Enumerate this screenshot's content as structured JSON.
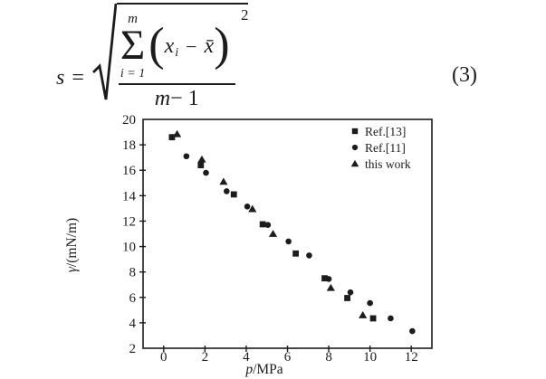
{
  "formula": {
    "lhs": "s",
    "equals": "=",
    "sum_upper": "m",
    "sum_glyph": "Σ",
    "sum_lower": "i = 1",
    "open_paren": "(",
    "x_term": "x",
    "x_sub": "i",
    "minus": "−",
    "xbar_term": "x̄",
    "close_paren": ")",
    "exponent": "2",
    "den_var": "m",
    "den_rest": " − 1",
    "eq_number": "(3)"
  },
  "chart_data": {
    "type": "scatter",
    "title": "",
    "xlabel": "p/MPa",
    "xlabel_var": "p",
    "xlabel_rest": "/MPa",
    "ylabel": "γ/(mN/m)",
    "ylabel_var": "γ",
    "ylabel_rest": "/(mN/m)",
    "xlim": [
      -1,
      13
    ],
    "ylim": [
      2,
      20
    ],
    "xticks": [
      0,
      2,
      4,
      6,
      8,
      10,
      12
    ],
    "yticks": [
      2,
      4,
      6,
      8,
      10,
      12,
      14,
      16,
      18,
      20
    ],
    "grid": false,
    "legend_position": "top-right",
    "marker_color": "#1c1c1c",
    "series": [
      {
        "name": "Ref.[13]",
        "marker": "square",
        "points": [
          [
            0.4,
            18.6
          ],
          [
            1.8,
            16.4
          ],
          [
            3.4,
            14.1
          ],
          [
            4.8,
            11.75
          ],
          [
            6.4,
            9.45
          ],
          [
            7.8,
            7.5
          ],
          [
            8.9,
            5.95
          ],
          [
            10.15,
            4.35
          ]
        ]
      },
      {
        "name": "Ref.[11]",
        "marker": "circle",
        "points": [
          [
            1.1,
            17.1
          ],
          [
            2.05,
            15.8
          ],
          [
            3.05,
            14.35
          ],
          [
            4.05,
            13.15
          ],
          [
            5.05,
            11.7
          ],
          [
            6.05,
            10.4
          ],
          [
            7.05,
            9.3
          ],
          [
            8.0,
            7.45
          ],
          [
            9.05,
            6.4
          ],
          [
            10.0,
            5.55
          ],
          [
            11.0,
            4.35
          ],
          [
            12.05,
            3.35
          ]
        ]
      },
      {
        "name": "this work",
        "marker": "triangle",
        "points": [
          [
            0.65,
            18.85
          ],
          [
            1.85,
            16.85
          ],
          [
            2.9,
            15.1
          ],
          [
            4.3,
            12.95
          ],
          [
            5.3,
            11.0
          ],
          [
            8.1,
            6.75
          ],
          [
            9.65,
            4.6
          ]
        ]
      }
    ]
  }
}
